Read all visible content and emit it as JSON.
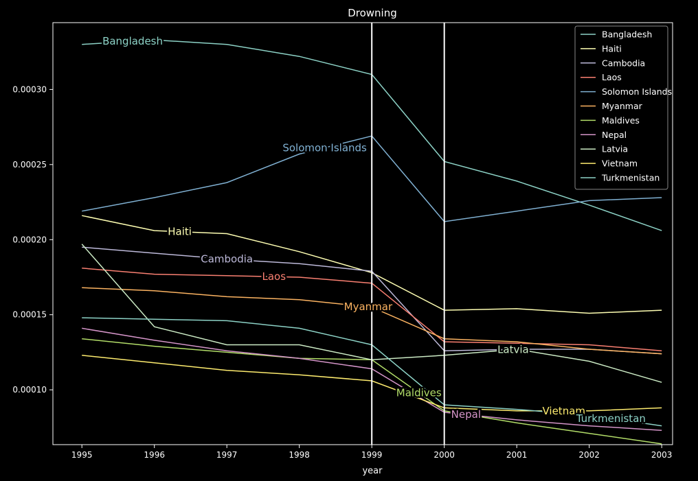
{
  "chart_data": {
    "type": "line",
    "title": "Drowning",
    "xlabel": "year",
    "ylabel": "",
    "x": [
      1995,
      1996,
      1997,
      1998,
      1999,
      2000,
      2001,
      2002,
      2003
    ],
    "x_ticks": [
      "1995",
      "1996",
      "1997",
      "1998",
      "1999",
      "2000",
      "2001",
      "2002",
      "2003"
    ],
    "xlim": [
      1994.6,
      2003.15
    ],
    "ylim": [
      6.35e-05,
      0.0003445
    ],
    "y_ticks": [
      0.0001,
      0.00015,
      0.0002,
      0.00025,
      0.0003
    ],
    "y_tick_labels": [
      "0.00010",
      "0.00015",
      "0.00020",
      "0.00025",
      "0.00030"
    ],
    "vertical_lines": [
      1999,
      2000
    ],
    "legend_position": "top-right",
    "series": [
      {
        "name": "Bangladesh",
        "color": "#8dd3c7",
        "values": [
          0.00033,
          0.000333,
          0.00033,
          0.000322,
          0.00031,
          0.000252,
          0.000239,
          0.000223,
          0.000206
        ],
        "label_x": 1995.7
      },
      {
        "name": "Haiti",
        "color": "#ffffb3",
        "values": [
          0.000216,
          0.000206,
          0.000204,
          0.000192,
          0.000178,
          0.000153,
          0.000154,
          0.000151,
          0.000153
        ],
        "label_x": 1996.35
      },
      {
        "name": "Cambodia",
        "color": "#bebada",
        "values": [
          0.000195,
          0.000191,
          0.000187,
          0.000184,
          0.000179,
          0.000126,
          0.000127,
          0.000127,
          0.000124
        ],
        "label_x": 1997.0
      },
      {
        "name": "Laos",
        "color": "#fb8072",
        "values": [
          0.000181,
          0.000177,
          0.000176,
          0.000175,
          0.000171,
          0.000132,
          0.000131,
          0.00013,
          0.000126
        ],
        "label_x": 1997.65
      },
      {
        "name": "Solomon Islands",
        "color": "#80b1d3",
        "values": [
          0.000219,
          0.000228,
          0.000238,
          0.000257,
          0.000269,
          0.000212,
          0.000219,
          0.000226,
          0.000228
        ],
        "label_x": 1998.35
      },
      {
        "name": "Myanmar",
        "color": "#fdb462",
        "values": [
          0.000168,
          0.000166,
          0.000162,
          0.00016,
          0.000155,
          0.000134,
          0.000132,
          0.000127,
          0.000124
        ],
        "label_x": 1998.95
      },
      {
        "name": "Maldives",
        "color": "#b3de69",
        "values": [
          0.000134,
          0.000129,
          0.000125,
          0.000121,
          0.00012,
          8.6e-05,
          7.8e-05,
          7.1e-05,
          6.4e-05
        ],
        "label_x": 1999.65
      },
      {
        "name": "Nepal",
        "color": "#d595c9",
        "values": [
          0.000141,
          0.000133,
          0.000126,
          0.000121,
          0.000114,
          8.5e-05,
          8e-05,
          7.6e-05,
          7.3e-05
        ],
        "label_x": 2000.3
      },
      {
        "name": "Latvia",
        "color": "#ccebc5",
        "values": [
          0.000197,
          0.000142,
          0.00013,
          0.00013,
          0.00012,
          0.000123,
          0.000127,
          0.000119,
          0.000105
        ],
        "label_x": 2000.95
      },
      {
        "name": "Vietnam",
        "color": "#ffed6f",
        "values": [
          0.000123,
          0.000118,
          0.000113,
          0.00011,
          0.000106,
          8.8e-05,
          8.6e-05,
          8.6e-05,
          8.8e-05
        ],
        "label_x": 2001.65
      },
      {
        "name": "Turkmenistan",
        "color": "#8dd3c7",
        "values": [
          0.000148,
          0.000147,
          0.000146,
          0.000141,
          0.00013,
          9e-05,
          8.7e-05,
          8.3e-05,
          7.6e-05
        ],
        "label_x": 2002.3
      }
    ]
  }
}
